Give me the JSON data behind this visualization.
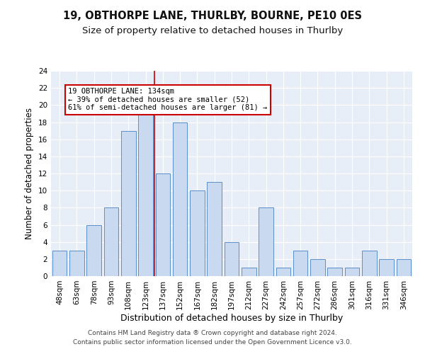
{
  "title": "19, OBTHORPE LANE, THURLBY, BOURNE, PE10 0ES",
  "subtitle": "Size of property relative to detached houses in Thurlby",
  "xlabel": "Distribution of detached houses by size in Thurlby",
  "ylabel": "Number of detached properties",
  "categories": [
    "48sqm",
    "63sqm",
    "78sqm",
    "93sqm",
    "108sqm",
    "123sqm",
    "137sqm",
    "152sqm",
    "167sqm",
    "182sqm",
    "197sqm",
    "212sqm",
    "227sqm",
    "242sqm",
    "257sqm",
    "272sqm",
    "286sqm",
    "301sqm",
    "316sqm",
    "331sqm",
    "346sqm"
  ],
  "values": [
    3,
    3,
    6,
    8,
    17,
    20,
    12,
    18,
    10,
    11,
    4,
    1,
    8,
    1,
    3,
    2,
    1,
    1,
    3,
    2,
    2
  ],
  "bar_color": "#c9d9f0",
  "bar_edge_color": "#5b8fc9",
  "red_line_x": 6,
  "ylim": [
    0,
    24
  ],
  "yticks": [
    0,
    2,
    4,
    6,
    8,
    10,
    12,
    14,
    16,
    18,
    20,
    22,
    24
  ],
  "annotation_line1": "19 OBTHORPE LANE: 134sqm",
  "annotation_line2": "← 39% of detached houses are smaller (52)",
  "annotation_line3": "61% of semi-detached houses are larger (81) →",
  "annotation_box_color": "#ffffff",
  "annotation_box_edge_color": "#cc0000",
  "figure_bg": "#ffffff",
  "plot_bg": "#e8eef7",
  "footer_line1": "Contains HM Land Registry data ® Crown copyright and database right 2024.",
  "footer_line2": "Contains public sector information licensed under the Open Government Licence v3.0.",
  "title_fontsize": 10.5,
  "subtitle_fontsize": 9.5,
  "xlabel_fontsize": 9,
  "ylabel_fontsize": 8.5,
  "tick_fontsize": 7.5,
  "annotation_fontsize": 7.5,
  "footer_fontsize": 6.5
}
